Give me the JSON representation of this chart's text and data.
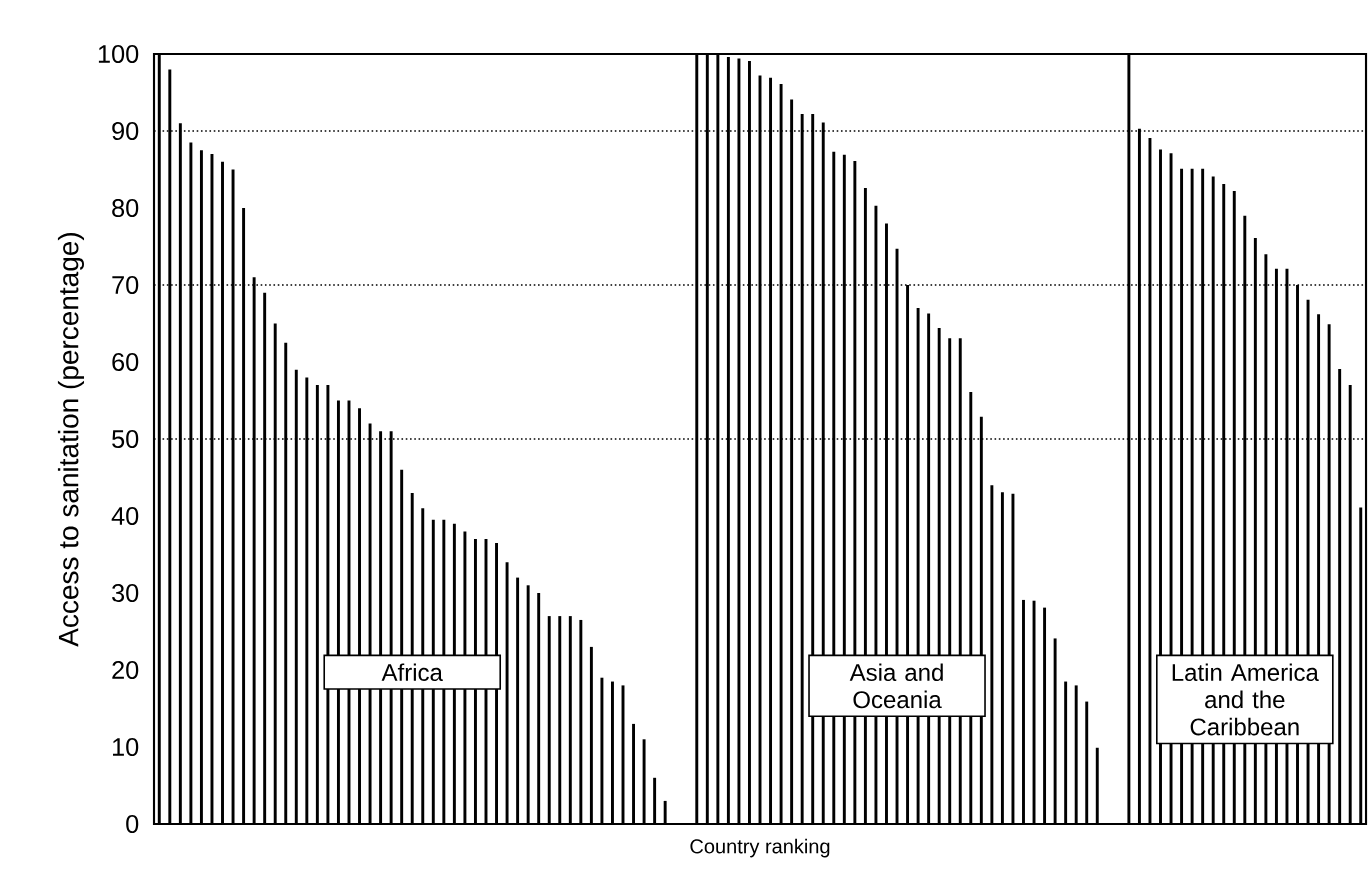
{
  "chart_data": {
    "type": "bar",
    "xlabel": "Country ranking",
    "ylabel": "Access to sanitation (percentage)",
    "categories": [
      null,
      null,
      null,
      null,
      null,
      null,
      null,
      null,
      null,
      null,
      null,
      null,
      null,
      null,
      null,
      null,
      null,
      null,
      null,
      null,
      null,
      null,
      null,
      null,
      null,
      null,
      null,
      null,
      null,
      null,
      null,
      null,
      null,
      null,
      null,
      null,
      null,
      null,
      null,
      null,
      null,
      null,
      null,
      null,
      null,
      null,
      null,
      null,
      null,
      null,
      null,
      null,
      null,
      null,
      null,
      null,
      null,
      null,
      null,
      null,
      null,
      null,
      null,
      null,
      null,
      null,
      null,
      null,
      null,
      null,
      null,
      null,
      null,
      null,
      null,
      null,
      null,
      null,
      null,
      null,
      null,
      null,
      null,
      null,
      null,
      null,
      null,
      null,
      null,
      null,
      null,
      null,
      null,
      null,
      null,
      null,
      null,
      null,
      null,
      null,
      null,
      null,
      null,
      null,
      null,
      null,
      null,
      null,
      null,
      null,
      null,
      null,
      null,
      null,
      null
    ],
    "values": [
      100,
      98,
      91,
      88.5,
      87.5,
      87,
      86,
      85,
      80,
      71,
      69,
      65,
      62.5,
      59,
      58,
      57,
      57,
      55,
      55,
      54,
      52,
      51,
      51,
      46,
      43,
      41,
      39.5,
      39.5,
      39,
      38,
      37,
      37,
      36.5,
      34,
      32,
      31,
      30,
      27,
      27,
      27,
      26.5,
      23,
      19,
      18.5,
      18,
      13,
      11,
      6,
      3,
      null,
      null,
      100,
      100,
      100,
      99.6,
      99.4,
      99.1,
      97.2,
      96.9,
      96.1,
      94.1,
      92.2,
      92.2,
      91.1,
      87.3,
      86.9,
      86.1,
      82.6,
      80.3,
      78,
      74.7,
      70,
      67,
      66.3,
      64.4,
      63.1,
      63.1,
      56.1,
      52.9,
      44,
      43.1,
      42.9,
      29.1,
      29,
      28.1,
      24.1,
      18.5,
      18,
      15.9,
      9.9,
      null,
      null,
      100,
      90.3,
      89.1,
      87.6,
      87.1,
      85.1,
      85.1,
      85.1,
      84.1,
      83.1,
      82.2,
      79,
      76.1,
      74,
      72.1,
      72.1,
      70,
      68.1,
      66.2,
      64.9,
      59.1,
      57,
      41.1
    ],
    "color": "#000000",
    "ylim": [
      0,
      100
    ],
    "yticks": [
      0,
      10,
      20,
      30,
      40,
      50,
      60,
      70,
      80,
      90,
      100
    ],
    "ref_lines": [
      {
        "axis": "y",
        "value": 50,
        "line_style": "dotted"
      },
      {
        "axis": "y",
        "value": 70,
        "line_style": "dotted"
      },
      {
        "axis": "y",
        "value": 90,
        "line_style": "dotted"
      }
    ],
    "annotations": [
      "Africa",
      "Asia and Oceania",
      "Latin America and the Caribbean"
    ]
  }
}
